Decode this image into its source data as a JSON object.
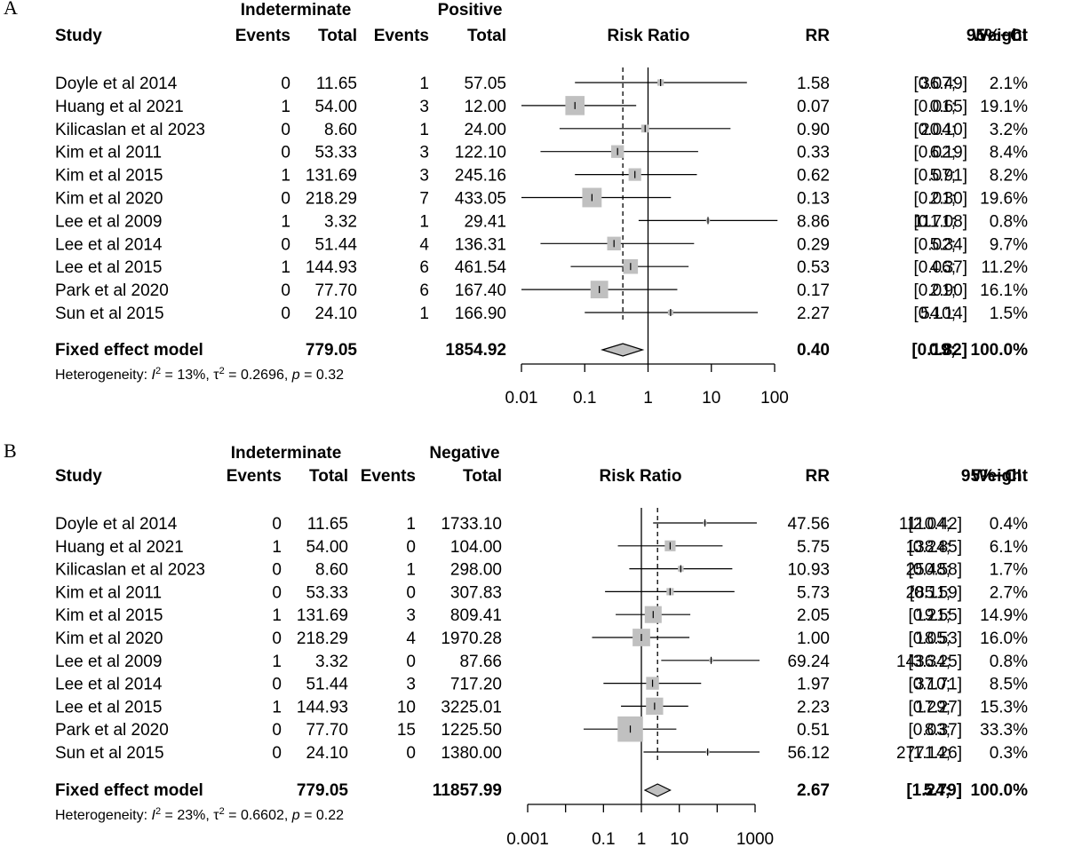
{
  "chart_data": [
    {
      "type": "forest",
      "panel_label": "A",
      "group1_label": "Indeterminate",
      "group2_label": "Positive",
      "headers": {
        "study": "Study",
        "events1": "Events",
        "total1": "Total",
        "events2": "Events",
        "total2": "Total",
        "plot": "Risk Ratio",
        "rr": "RR",
        "ci": "95%−CI",
        "weight": "Weight"
      },
      "studies": [
        {
          "study": "Doyle et al 2014",
          "e1": "0",
          "t1": "11.65",
          "e2": "1",
          "t2": "57.05",
          "rr": "1.58",
          "ci": "[0.07; 36.49]",
          "w": "2.1%",
          "rr_val": 1.58,
          "lo": 0.07,
          "hi": 36.49,
          "wval": 2.1
        },
        {
          "study": "Huang et al 2021",
          "e1": "1",
          "t1": "54.00",
          "e2": "3",
          "t2": "12.00",
          "rr": "0.07",
          "ci": "[0.01; 0.65]",
          "w": "19.1%",
          "rr_val": 0.07,
          "lo": 0.01,
          "hi": 0.65,
          "wval": 19.1
        },
        {
          "study": "Kilicaslan et al 2023",
          "e1": "0",
          "t1": "8.60",
          "e2": "1",
          "t2": "24.00",
          "rr": "0.90",
          "ci": "[0.04; 20.10]",
          "w": "3.2%",
          "rr_val": 0.9,
          "lo": 0.04,
          "hi": 20.1,
          "wval": 3.2
        },
        {
          "study": "Kim et al 2011",
          "e1": "0",
          "t1": "53.33",
          "e2": "3",
          "t2": "122.10",
          "rr": "0.33",
          "ci": "[0.02; 6.19]",
          "w": "8.4%",
          "rr_val": 0.33,
          "lo": 0.02,
          "hi": 6.19,
          "wval": 8.4
        },
        {
          "study": "Kim et al 2015",
          "e1": "1",
          "t1": "131.69",
          "e2": "3",
          "t2": "245.16",
          "rr": "0.62",
          "ci": "[0.07; 5.91]",
          "w": "8.2%",
          "rr_val": 0.62,
          "lo": 0.07,
          "hi": 5.91,
          "wval": 8.2
        },
        {
          "study": "Kim et al 2020",
          "e1": "0",
          "t1": "218.29",
          "e2": "7",
          "t2": "433.05",
          "rr": "0.13",
          "ci": "[0.01; 2.30]",
          "w": "19.6%",
          "rr_val": 0.13,
          "lo": 0.01,
          "hi": 2.3,
          "wval": 19.6
        },
        {
          "study": "Lee et al 2009",
          "e1": "1",
          "t1": "3.32",
          "e2": "1",
          "t2": "29.41",
          "rr": "8.86",
          "ci": "[0.71; 111.08]",
          "w": "0.8%",
          "rr_val": 8.86,
          "lo": 0.71,
          "hi": 111.08,
          "wval": 0.8
        },
        {
          "study": "Lee et al 2014",
          "e1": "0",
          "t1": "51.44",
          "e2": "4",
          "t2": "136.31",
          "rr": "0.29",
          "ci": "[0.02; 5.34]",
          "w": "9.7%",
          "rr_val": 0.29,
          "lo": 0.02,
          "hi": 5.34,
          "wval": 9.7
        },
        {
          "study": "Lee et al 2015",
          "e1": "1",
          "t1": "144.93",
          "e2": "6",
          "t2": "461.54",
          "rr": "0.53",
          "ci": "[0.06; 4.37]",
          "w": "11.2%",
          "rr_val": 0.53,
          "lo": 0.06,
          "hi": 4.37,
          "wval": 11.2
        },
        {
          "study": "Park et al 2020",
          "e1": "0",
          "t1": "77.70",
          "e2": "6",
          "t2": "167.40",
          "rr": "0.17",
          "ci": "[0.01; 2.90]",
          "w": "16.1%",
          "rr_val": 0.17,
          "lo": 0.01,
          "hi": 2.9,
          "wval": 16.1
        },
        {
          "study": "Sun et al 2015",
          "e1": "0",
          "t1": "24.10",
          "e2": "1",
          "t2": "166.90",
          "rr": "2.27",
          "ci": "[0.10; 54.14]",
          "w": "1.5%",
          "rr_val": 2.27,
          "lo": 0.1,
          "hi": 54.14,
          "wval": 1.5
        }
      ],
      "pooled": {
        "label": "Fixed effect model",
        "t1": "779.05",
        "t2": "1854.92",
        "rr": "0.40",
        "ci": "[0.19; 0.82]",
        "w": "100.0%",
        "rr_val": 0.4,
        "lo": 0.19,
        "hi": 0.82
      },
      "heterogeneity": {
        "prefix": "Heterogeneity: ",
        "i2": "13%",
        "tau2": "0.2696",
        "p": "0.32"
      },
      "xticks": [
        "0.01",
        "0.1",
        "1",
        "10",
        "100"
      ],
      "xlim": [
        0.01,
        100
      ],
      "scale": "log"
    },
    {
      "type": "forest",
      "panel_label": "B",
      "group1_label": "Indeterminate",
      "group2_label": "Negative",
      "headers": {
        "study": "Study",
        "events1": "Events",
        "total1": "Total",
        "events2": "Events",
        "total2": "Total",
        "plot": "Risk Ratio",
        "rr": "RR",
        "ci": "95%−CI",
        "weight": "Weight"
      },
      "studies": [
        {
          "study": "Doyle et al 2014",
          "e1": "0",
          "t1": "11.65",
          "e2": "1",
          "t2": "1733.10",
          "rr": "47.56",
          "ci": "[2.04; 1110.42]",
          "w": "0.4%",
          "rr_val": 47.56,
          "lo": 2.04,
          "hi": 1110.42,
          "wval": 0.4
        },
        {
          "study": "Huang et al 2021",
          "e1": "1",
          "t1": "54.00",
          "e2": "0",
          "t2": "104.00",
          "rr": "5.75",
          "ci": "[0.24; 138.85]",
          "w": "6.1%",
          "rr_val": 5.75,
          "lo": 0.24,
          "hi": 138.85,
          "wval": 6.1
        },
        {
          "study": "Kilicaslan et al 2023",
          "e1": "0",
          "t1": "8.60",
          "e2": "1",
          "t2": "298.00",
          "rr": "10.93",
          "ci": "[0.48; 250.58]",
          "w": "1.7%",
          "rr_val": 10.93,
          "lo": 0.48,
          "hi": 250.58,
          "wval": 1.7
        },
        {
          "study": "Kim et al 2011",
          "e1": "0",
          "t1": "53.33",
          "e2": "0",
          "t2": "307.83",
          "rr": "5.73",
          "ci": "[0.11; 285.59]",
          "w": "2.7%",
          "rr_val": 5.73,
          "lo": 0.11,
          "hi": 285.59,
          "wval": 2.7
        },
        {
          "study": "Kim et al 2015",
          "e1": "1",
          "t1": "131.69",
          "e2": "3",
          "t2": "809.41",
          "rr": "2.05",
          "ci": "[0.21; 19.55]",
          "w": "14.9%",
          "rr_val": 2.05,
          "lo": 0.21,
          "hi": 19.55,
          "wval": 14.9
        },
        {
          "study": "Kim et al 2020",
          "e1": "0",
          "t1": "218.29",
          "e2": "4",
          "t2": "1970.28",
          "rr": "1.00",
          "ci": "[0.05; 18.53]",
          "w": "16.0%",
          "rr_val": 1.0,
          "lo": 0.05,
          "hi": 18.53,
          "wval": 16.0
        },
        {
          "study": "Lee et al 2009",
          "e1": "1",
          "t1": "3.32",
          "e2": "0",
          "t2": "87.66",
          "rr": "69.24",
          "ci": "[3.34; 1436.25]",
          "w": "0.8%",
          "rr_val": 69.24,
          "lo": 3.34,
          "hi": 1436.25,
          "wval": 0.8
        },
        {
          "study": "Lee et al 2014",
          "e1": "0",
          "t1": "51.44",
          "e2": "3",
          "t2": "717.20",
          "rr": "1.97",
          "ci": "[0.10; 37.71]",
          "w": "8.5%",
          "rr_val": 1.97,
          "lo": 0.1,
          "hi": 37.71,
          "wval": 8.5
        },
        {
          "study": "Lee et al 2015",
          "e1": "1",
          "t1": "144.93",
          "e2": "10",
          "t2": "3225.01",
          "rr": "2.23",
          "ci": "[0.29; 17.27]",
          "w": "15.3%",
          "rr_val": 2.23,
          "lo": 0.29,
          "hi": 17.27,
          "wval": 15.3
        },
        {
          "study": "Park et al 2020",
          "e1": "0",
          "t1": "77.70",
          "e2": "15",
          "t2": "1225.50",
          "rr": "0.51",
          "ci": "[0.03; 8.37]",
          "w": "33.3%",
          "rr_val": 0.51,
          "lo": 0.03,
          "hi": 8.37,
          "wval": 33.3
        },
        {
          "study": "Sun et al 2015",
          "e1": "0",
          "t1": "24.10",
          "e2": "0",
          "t2": "1380.00",
          "rr": "56.12",
          "ci": "[1.14; 2771.26]",
          "w": "0.3%",
          "rr_val": 56.12,
          "lo": 1.14,
          "hi": 2771.26,
          "wval": 0.3
        }
      ],
      "pooled": {
        "label": "Fixed effect model",
        "t1": "779.05",
        "t2": "11857.99",
        "rr": "2.67",
        "ci": "[1.24; 5.79]",
        "w": "100.0%",
        "rr_val": 2.67,
        "lo": 1.24,
        "hi": 5.79
      },
      "heterogeneity": {
        "prefix": "Heterogeneity: ",
        "i2": "23%",
        "tau2": "0.6602",
        "p": "0.22"
      },
      "xticks": [
        "0.001",
        "0.1",
        "1",
        "10",
        "1000"
      ],
      "xlim": [
        0.001,
        1000
      ],
      "scale": "log"
    }
  ]
}
